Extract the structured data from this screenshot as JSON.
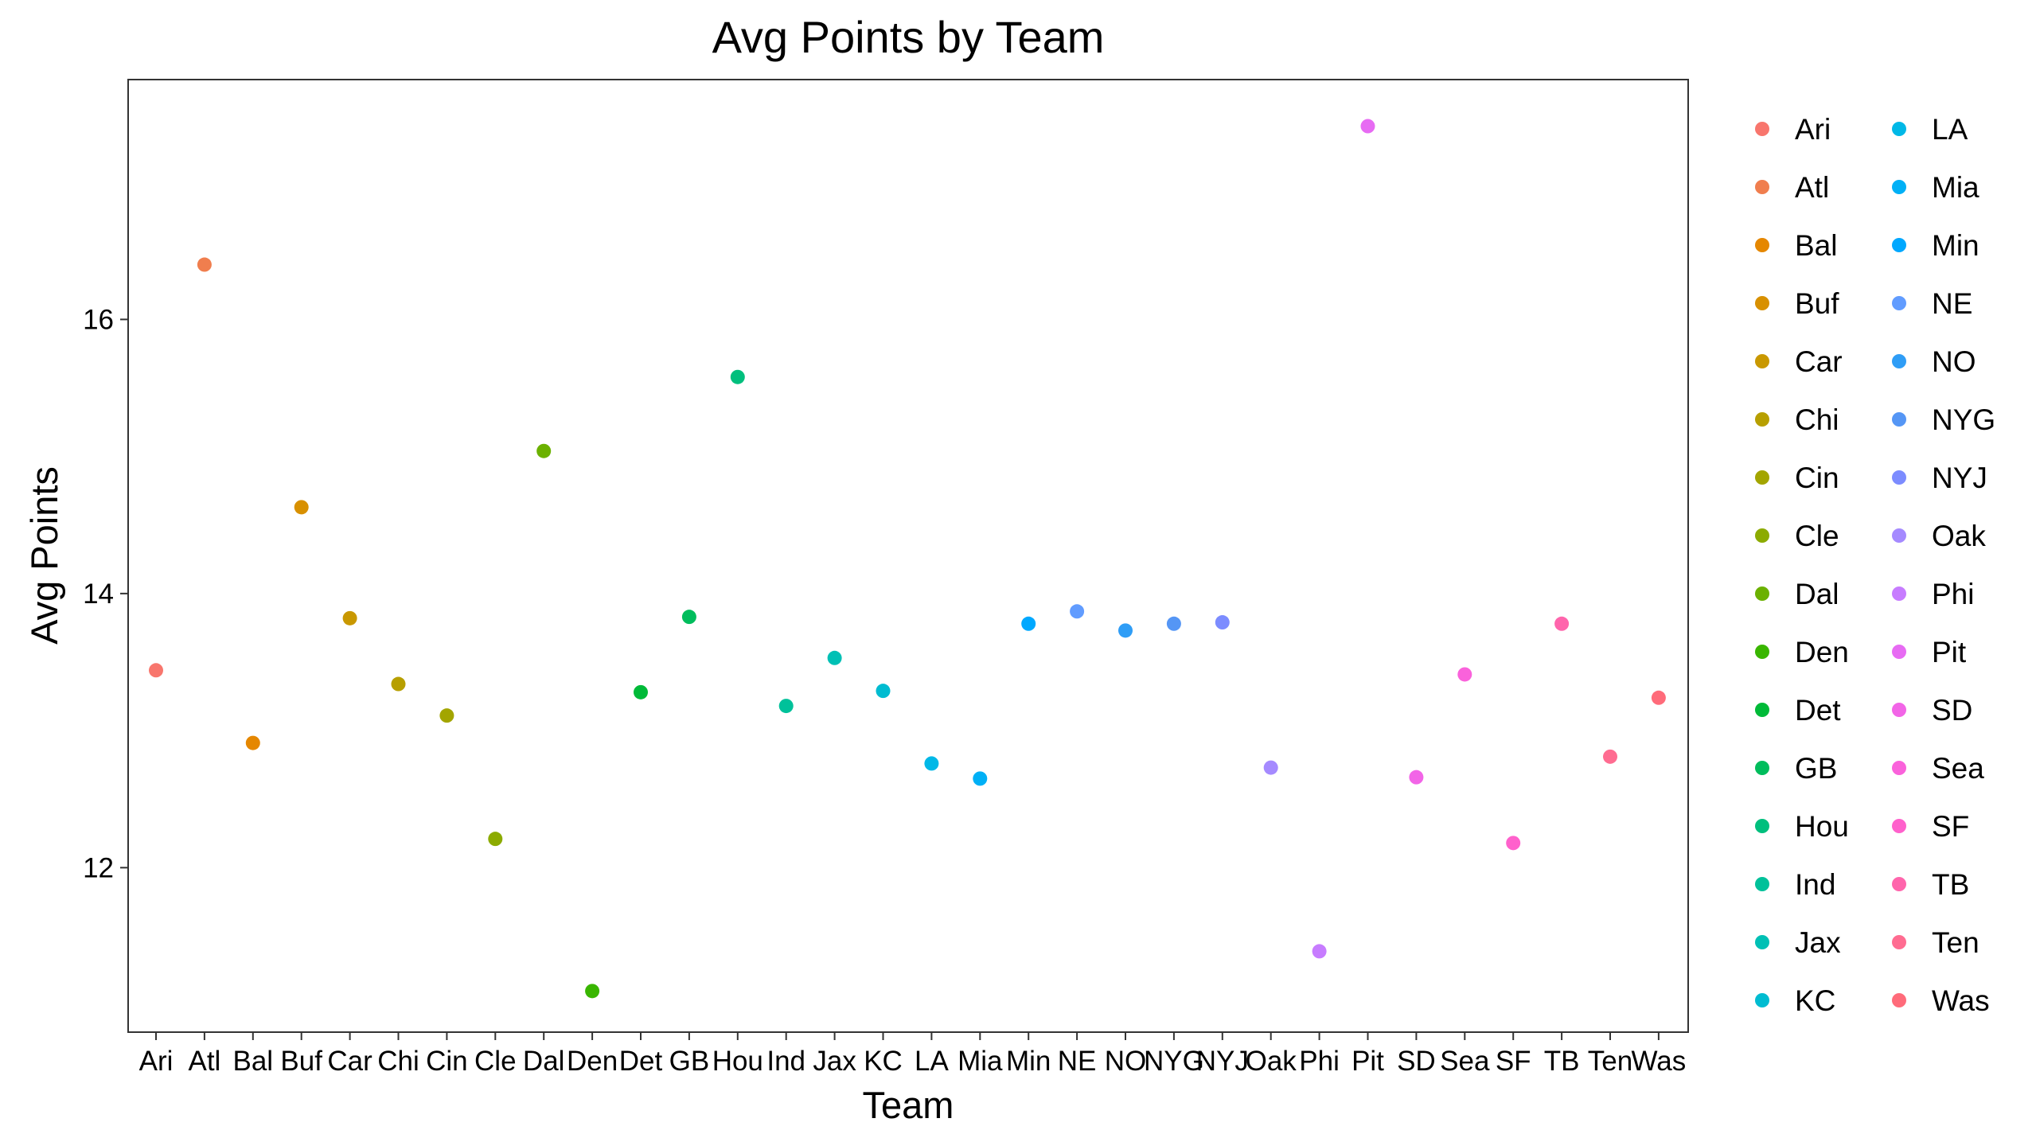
{
  "chart_data": {
    "type": "scatter",
    "title": "Avg Points by Team",
    "xlabel": "Team",
    "ylabel": "Avg Points",
    "ylim": [
      10.8,
      17.75
    ],
    "yticks": [
      12,
      14,
      16
    ],
    "grid": false,
    "legend_placement": "right",
    "categories": [
      "Ari",
      "Atl",
      "Bal",
      "Buf",
      "Car",
      "Chi",
      "Cin",
      "Cle",
      "Dal",
      "Den",
      "Det",
      "GB",
      "Hou",
      "Ind",
      "Jax",
      "KC",
      "LA",
      "Mia",
      "Min",
      "NE",
      "NO",
      "NYG",
      "NYJ",
      "Oak",
      "Phi",
      "Pit",
      "SD",
      "Sea",
      "SF",
      "TB",
      "Ten",
      "Was"
    ],
    "values": [
      13.44,
      16.4,
      12.91,
      14.63,
      13.82,
      13.34,
      13.11,
      12.21,
      15.04,
      11.1,
      13.28,
      13.83,
      15.58,
      13.18,
      13.53,
      13.29,
      12.76,
      12.65,
      13.78,
      13.87,
      13.73,
      13.78,
      13.79,
      12.73,
      11.39,
      17.41,
      12.66,
      13.41,
      12.18,
      13.78,
      12.81,
      13.24
    ],
    "colors": [
      "#F8766D",
      "#F07E4E",
      "#E58700",
      "#D89000",
      "#C99800",
      "#B79F00",
      "#A3A500",
      "#8CAB00",
      "#6BB100",
      "#39B600",
      "#00BA38",
      "#00BD5C",
      "#00BF7D",
      "#00C19A",
      "#00C0B5",
      "#00BCD1",
      "#00B8E7",
      "#00B0F6",
      "#00A8FF",
      "#619CFF",
      "#2F9DF6",
      "#5596F5",
      "#7C8CFF",
      "#A58AFF",
      "#C77CFF",
      "#E76BF3",
      "#F265E7",
      "#FA62DB",
      "#FF61CC",
      "#FF65AC",
      "#FF6C91",
      "#FF6B7A"
    ]
  }
}
